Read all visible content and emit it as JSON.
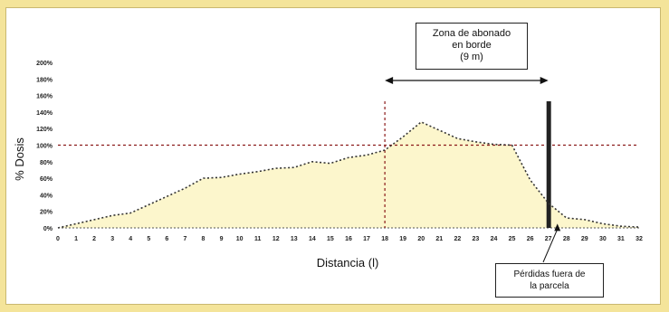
{
  "chart_data": {
    "type": "area",
    "xlabel": "Distancia (l)",
    "ylabel": "% Dosis",
    "xlim": [
      0,
      32
    ],
    "ylim": [
      0,
      200
    ],
    "y_ticks": [
      "0%",
      "20%",
      "40%",
      "60%",
      "80%",
      "100%",
      "120%",
      "140%",
      "160%",
      "180%",
      "200%"
    ],
    "x_ticks": [
      "0",
      "1",
      "2",
      "3",
      "4",
      "5",
      "6",
      "7",
      "8",
      "9",
      "10",
      "11",
      "12",
      "13",
      "14",
      "15",
      "16",
      "17",
      "18",
      "19",
      "20",
      "21",
      "22",
      "23",
      "24",
      "25",
      "26",
      "27",
      "28",
      "29",
      "30",
      "31",
      "32"
    ],
    "reference_line_y": 100,
    "series": [
      {
        "x": [
          0,
          1,
          2,
          3,
          4,
          5,
          6,
          7,
          8,
          9,
          10,
          11,
          12,
          13,
          14,
          15,
          16,
          17,
          18,
          19,
          20,
          21,
          22,
          23,
          24,
          25,
          26,
          27,
          28,
          29,
          30,
          31,
          32
        ],
        "y": [
          0,
          5,
          10,
          15,
          18,
          28,
          38,
          48,
          60,
          61,
          65,
          68,
          72,
          73,
          80,
          78,
          85,
          88,
          94,
          110,
          128,
          118,
          108,
          104,
          101,
          100,
          58,
          30,
          12,
          10,
          5,
          2,
          1
        ]
      }
    ],
    "band": {
      "x_start": 18,
      "x_end": 27
    },
    "annotations": {
      "zone_label_lines": [
        "Zona de abonado",
        "en borde",
        "(9 m)"
      ],
      "loss_label_lines": [
        "Pérdidas fuera de",
        "la parcela"
      ]
    },
    "colors": {
      "fill": "#fcf6cc",
      "line": "#333333",
      "reference": "#8b1a1a",
      "boundary": "#222222",
      "background": "#f4e49a"
    }
  }
}
